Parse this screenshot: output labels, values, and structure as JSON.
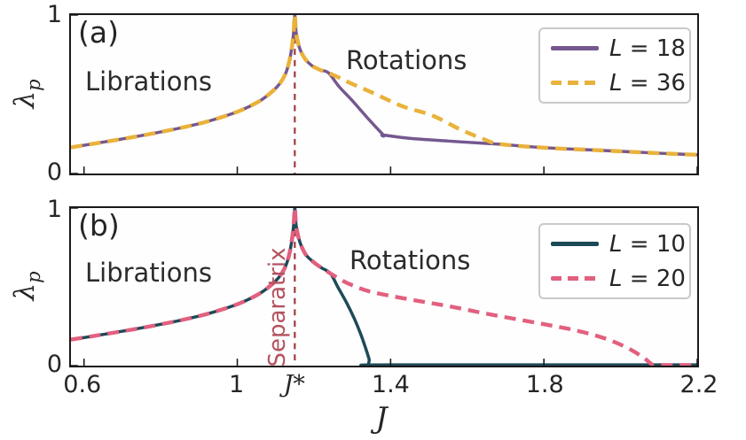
{
  "figure_background": "#ffffff",
  "axis": {
    "xlabel": "J",
    "ylabel_main": "λ",
    "ylabel_sub": "p",
    "x_ticks": [
      {
        "label": "0.6",
        "J": 0.6,
        "math": false,
        "has_tickmark": true
      },
      {
        "label": "1",
        "J": 1.0,
        "math": false,
        "has_tickmark": true
      },
      {
        "label": "J*",
        "J": 1.15,
        "math": true,
        "has_tickmark": false
      },
      {
        "label": "1.4",
        "J": 1.4,
        "math": false,
        "has_tickmark": true
      },
      {
        "label": "1.8",
        "J": 1.8,
        "math": false,
        "has_tickmark": true
      },
      {
        "label": "2.2",
        "J": 2.2,
        "math": false,
        "has_tickmark": true
      }
    ],
    "y_ticks": [
      {
        "label": "0",
        "value": 0
      },
      {
        "label": "1",
        "value": 1
      }
    ]
  },
  "chart_data": [
    {
      "panel_label": "(a)",
      "type": "line",
      "xlim": [
        0.566,
        2.2
      ],
      "ylim": [
        0,
        1
      ],
      "grid": false,
      "legend_position": "top-right",
      "annotations": {
        "left_region": "Librations",
        "right_region": "Rotations"
      },
      "separatrix": {
        "J": 1.15,
        "color": "#9e3a3e"
      },
      "series": [
        {
          "name": "L = 18",
          "var": "L",
          "rest": " = 18",
          "color": "#75588f",
          "style": "solid",
          "width": 3.5,
          "points": [
            [
              0.566,
              0.165
            ],
            [
              0.62,
              0.186
            ],
            [
              0.68,
              0.21
            ],
            [
              0.74,
              0.235
            ],
            [
              0.8,
              0.262
            ],
            [
              0.86,
              0.292
            ],
            [
              0.92,
              0.327
            ],
            [
              0.98,
              0.372
            ],
            [
              1.02,
              0.41
            ],
            [
              1.06,
              0.46
            ],
            [
              1.09,
              0.515
            ],
            [
              1.11,
              0.565
            ],
            [
              1.125,
              0.625
            ],
            [
              1.135,
              0.7
            ],
            [
              1.142,
              0.79
            ],
            [
              1.147,
              0.89
            ],
            [
              1.15,
              1.0
            ],
            [
              1.153,
              0.9
            ],
            [
              1.158,
              0.83
            ],
            [
              1.166,
              0.77
            ],
            [
              1.178,
              0.72
            ],
            [
              1.195,
              0.68
            ],
            [
              1.215,
              0.655
            ],
            [
              1.238,
              0.635
            ],
            [
              1.265,
              0.55
            ],
            [
              1.3,
              0.46
            ],
            [
              1.34,
              0.35
            ],
            [
              1.381,
              0.243
            ],
            [
              1.381,
              0.243
            ],
            [
              1.45,
              0.222
            ],
            [
              1.55,
              0.205
            ],
            [
              1.65,
              0.19
            ],
            [
              1.683,
              0.185
            ],
            [
              1.8,
              0.163
            ],
            [
              1.95,
              0.146
            ],
            [
              2.1,
              0.128
            ],
            [
              2.2,
              0.118
            ]
          ]
        },
        {
          "name": "L = 36",
          "var": "L",
          "rest": " = 36",
          "color": "#e9b23b",
          "style": "dashed",
          "width": 4.5,
          "points": [
            [
              0.566,
              0.165
            ],
            [
              0.62,
              0.186
            ],
            [
              0.68,
              0.21
            ],
            [
              0.74,
              0.235
            ],
            [
              0.8,
              0.262
            ],
            [
              0.86,
              0.292
            ],
            [
              0.92,
              0.327
            ],
            [
              0.98,
              0.372
            ],
            [
              1.02,
              0.41
            ],
            [
              1.06,
              0.46
            ],
            [
              1.09,
              0.515
            ],
            [
              1.11,
              0.565
            ],
            [
              1.125,
              0.625
            ],
            [
              1.135,
              0.7
            ],
            [
              1.142,
              0.79
            ],
            [
              1.147,
              0.89
            ],
            [
              1.15,
              1.0
            ],
            [
              1.153,
              0.9
            ],
            [
              1.158,
              0.83
            ],
            [
              1.166,
              0.77
            ],
            [
              1.178,
              0.72
            ],
            [
              1.195,
              0.68
            ],
            [
              1.215,
              0.655
            ],
            [
              1.238,
              0.635
            ],
            [
              1.27,
              0.6
            ],
            [
              1.3,
              0.565
            ],
            [
              1.353,
              0.51
            ],
            [
              1.43,
              0.425
            ],
            [
              1.51,
              0.365
            ],
            [
              1.58,
              0.28
            ],
            [
              1.64,
              0.22
            ],
            [
              1.683,
              0.187
            ],
            [
              1.8,
              0.163
            ],
            [
              1.95,
              0.146
            ],
            [
              2.1,
              0.128
            ],
            [
              2.2,
              0.118
            ]
          ]
        }
      ]
    },
    {
      "panel_label": "(b)",
      "type": "line",
      "xlim": [
        0.566,
        2.2
      ],
      "ylim": [
        0,
        1
      ],
      "grid": false,
      "legend_position": "top-right",
      "annotations": {
        "left_region": "Librations",
        "right_region": "Rotations"
      },
      "separatrix": {
        "J": 1.15,
        "color": "#9e3a3e",
        "label": "Separatrix"
      },
      "series": [
        {
          "name": "L = 10",
          "var": "L",
          "rest": " = 10",
          "color": "#1d4a57",
          "style": "solid",
          "width": 3.5,
          "points": [
            [
              0.566,
              0.165
            ],
            [
              0.62,
              0.186
            ],
            [
              0.68,
              0.21
            ],
            [
              0.74,
              0.235
            ],
            [
              0.8,
              0.262
            ],
            [
              0.86,
              0.292
            ],
            [
              0.92,
              0.327
            ],
            [
              0.98,
              0.372
            ],
            [
              1.02,
              0.41
            ],
            [
              1.06,
              0.46
            ],
            [
              1.09,
              0.515
            ],
            [
              1.11,
              0.565
            ],
            [
              1.125,
              0.625
            ],
            [
              1.135,
              0.7
            ],
            [
              1.142,
              0.79
            ],
            [
              1.147,
              0.89
            ],
            [
              1.15,
              1.0
            ],
            [
              1.153,
              0.9
            ],
            [
              1.158,
              0.83
            ],
            [
              1.167,
              0.76
            ],
            [
              1.18,
              0.7
            ],
            [
              1.2,
              0.655
            ],
            [
              1.22,
              0.62
            ],
            [
              1.243,
              0.585
            ],
            [
              1.262,
              0.5
            ],
            [
              1.285,
              0.4
            ],
            [
              1.305,
              0.3
            ],
            [
              1.322,
              0.2
            ],
            [
              1.335,
              0.11
            ],
            [
              1.344,
              0.04
            ],
            [
              1.347,
              0.005
            ],
            [
              1.4,
              0.005
            ],
            [
              2.2,
              0.005
            ]
          ]
        },
        {
          "name": "L = 20",
          "var": "L",
          "rest": " = 20",
          "color": "#e2607f",
          "style": "dashed",
          "width": 4.5,
          "points": [
            [
              0.566,
              0.165
            ],
            [
              0.62,
              0.186
            ],
            [
              0.68,
              0.21
            ],
            [
              0.74,
              0.235
            ],
            [
              0.8,
              0.262
            ],
            [
              0.86,
              0.292
            ],
            [
              0.92,
              0.327
            ],
            [
              0.98,
              0.372
            ],
            [
              1.02,
              0.41
            ],
            [
              1.06,
              0.46
            ],
            [
              1.09,
              0.515
            ],
            [
              1.11,
              0.565
            ],
            [
              1.125,
              0.625
            ],
            [
              1.135,
              0.7
            ],
            [
              1.142,
              0.79
            ],
            [
              1.147,
              0.89
            ],
            [
              1.15,
              1.0
            ],
            [
              1.153,
              0.9
            ],
            [
              1.158,
              0.83
            ],
            [
              1.167,
              0.76
            ],
            [
              1.18,
              0.7
            ],
            [
              1.2,
              0.655
            ],
            [
              1.22,
              0.62
            ],
            [
              1.243,
              0.585
            ],
            [
              1.27,
              0.545
            ],
            [
              1.3,
              0.51
            ],
            [
              1.35,
              0.468
            ],
            [
              1.45,
              0.42
            ],
            [
              1.55,
              0.378
            ],
            [
              1.66,
              0.325
            ],
            [
              1.78,
              0.272
            ],
            [
              1.88,
              0.225
            ],
            [
              1.96,
              0.172
            ],
            [
              2.02,
              0.11
            ],
            [
              2.06,
              0.05
            ],
            [
              2.084,
              0.005
            ],
            [
              2.1,
              0.003
            ],
            [
              2.2,
              0.003
            ]
          ]
        }
      ]
    }
  ]
}
